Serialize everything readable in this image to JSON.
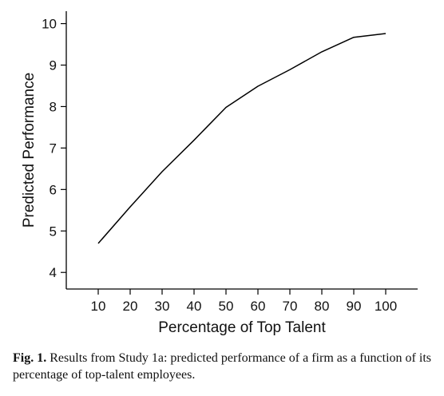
{
  "chart_data": {
    "type": "line",
    "xlabel": "Percentage of Top Talent",
    "ylabel": "Predicted Performance",
    "x": [
      10,
      20,
      30,
      40,
      50,
      60,
      70,
      80,
      90,
      100
    ],
    "series": [
      {
        "values": [
          4.7,
          5.58,
          6.43,
          7.19,
          7.98,
          8.49,
          8.89,
          9.32,
          9.67,
          9.76
        ]
      }
    ],
    "xticks": [
      10,
      20,
      30,
      40,
      50,
      60,
      70,
      80,
      90,
      100
    ],
    "yticks": [
      4,
      5,
      6,
      7,
      8,
      9,
      10
    ],
    "xlim": [
      0,
      110
    ],
    "ylim": [
      3.6,
      10.3
    ],
    "grid": false,
    "line_color": "#000000"
  },
  "caption": {
    "label": "Fig. 1.",
    "text": "Results from Study 1a: predicted performance of a firm as a function of its percentage of top-talent employees."
  }
}
